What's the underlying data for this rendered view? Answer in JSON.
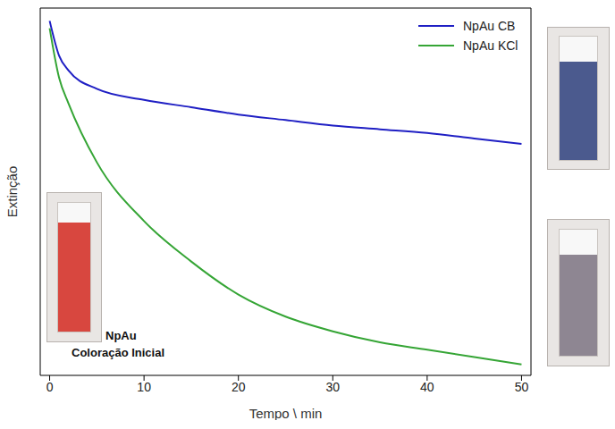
{
  "chart_data": {
    "type": "line",
    "x_label": "Tempo \\ min",
    "y_label": "Extinção",
    "x": [
      0,
      1,
      2,
      5,
      10,
      15,
      20,
      25,
      30,
      35,
      40,
      45,
      50
    ],
    "series": [
      {
        "name": "NpAu CB",
        "color": "#1f1fc4",
        "values": [
          0.965,
          0.87,
          0.83,
          0.78,
          0.75,
          0.73,
          0.71,
          0.695,
          0.68,
          0.67,
          0.66,
          0.645,
          0.63
        ]
      },
      {
        "name": "NpAu KCl",
        "color": "#35a535",
        "values": [
          0.945,
          0.81,
          0.74,
          0.58,
          0.42,
          0.31,
          0.22,
          0.16,
          0.12,
          0.09,
          0.07,
          0.05,
          0.03
        ]
      }
    ],
    "xlim": [
      -1,
      51
    ],
    "xticks": [
      0,
      10,
      20,
      30,
      40,
      50
    ],
    "ylim": [
      0,
      1
    ],
    "yticks": [],
    "tick_labels": "x",
    "legend": "upper right",
    "grid": false,
    "annotations": [
      "NpAu",
      "Coloração Inicial"
    ]
  }
}
